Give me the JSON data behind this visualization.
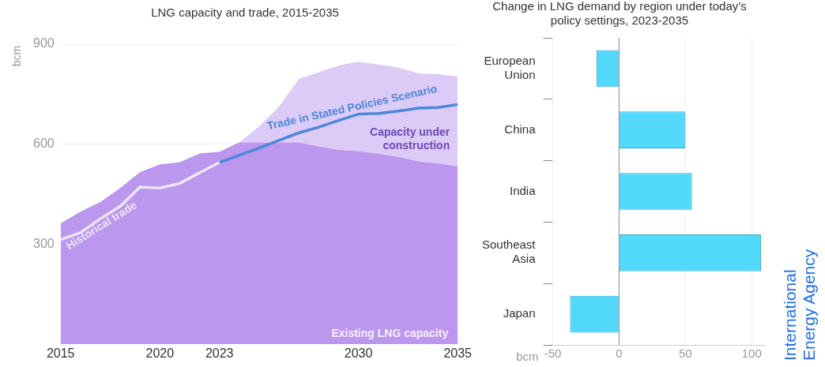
{
  "chart_data": [
    {
      "type": "area",
      "title": "LNG capacity and trade, 2015-2035",
      "ylabel": "bcm",
      "x": [
        2015,
        2016,
        2017,
        2018,
        2019,
        2020,
        2021,
        2022,
        2023,
        2024,
        2025,
        2026,
        2027,
        2028,
        2029,
        2030,
        2031,
        2032,
        2033,
        2034,
        2035
      ],
      "series": [
        {
          "name": "Existing LNG capacity",
          "type": "area",
          "color": "#bc97ee",
          "values": [
            362,
            397,
            426,
            468,
            516,
            539,
            546,
            572,
            577,
            605,
            605,
            605,
            605,
            593,
            583,
            579,
            571,
            562,
            548,
            542,
            533
          ]
        },
        {
          "name": "Capacity under construction",
          "type": "area",
          "color": "#dccbf6",
          "values": [
            null,
            null,
            null,
            null,
            null,
            null,
            null,
            null,
            0,
            0,
            48,
            108,
            191,
            223,
            253,
            268,
            268,
            268,
            265,
            268,
            270
          ]
        },
        {
          "name": "Historical trade",
          "type": "line",
          "color": "#ebe6f2",
          "values": [
            313,
            334,
            376,
            413,
            471,
            468,
            482,
            514,
            545,
            null,
            null,
            null,
            null,
            null,
            null,
            null,
            null,
            null,
            null,
            null,
            null
          ]
        },
        {
          "name": "Trade in Stated Policies Scenario",
          "type": "line",
          "color": "#4a88d8",
          "values": [
            null,
            null,
            null,
            null,
            null,
            null,
            null,
            null,
            545,
            567,
            588,
            611,
            634,
            651,
            671,
            690,
            692,
            699,
            708,
            710,
            719
          ]
        }
      ],
      "stacked": true,
      "xlim": [
        2015,
        2035
      ],
      "xticks": [
        2015,
        2020,
        2023,
        2030,
        2035
      ],
      "ylim": [
        0,
        900
      ],
      "yticks": [
        300,
        600,
        900
      ],
      "grid": "y"
    },
    {
      "type": "bar",
      "orientation": "horizontal",
      "title": "Change in LNG demand by region under today’s policy settings, 2023-2035",
      "xlabel": "bcm",
      "categories": [
        "European Union",
        "China",
        "India",
        "Southeast Asia",
        "Japan"
      ],
      "values": [
        -17,
        50,
        55,
        107,
        -37
      ],
      "color": "#52d9fb",
      "xlim": [
        -50,
        110
      ],
      "xticks": [
        -50,
        0,
        50,
        100
      ],
      "grid": "x",
      "annotations": [
        "International Energy Agency"
      ]
    }
  ]
}
